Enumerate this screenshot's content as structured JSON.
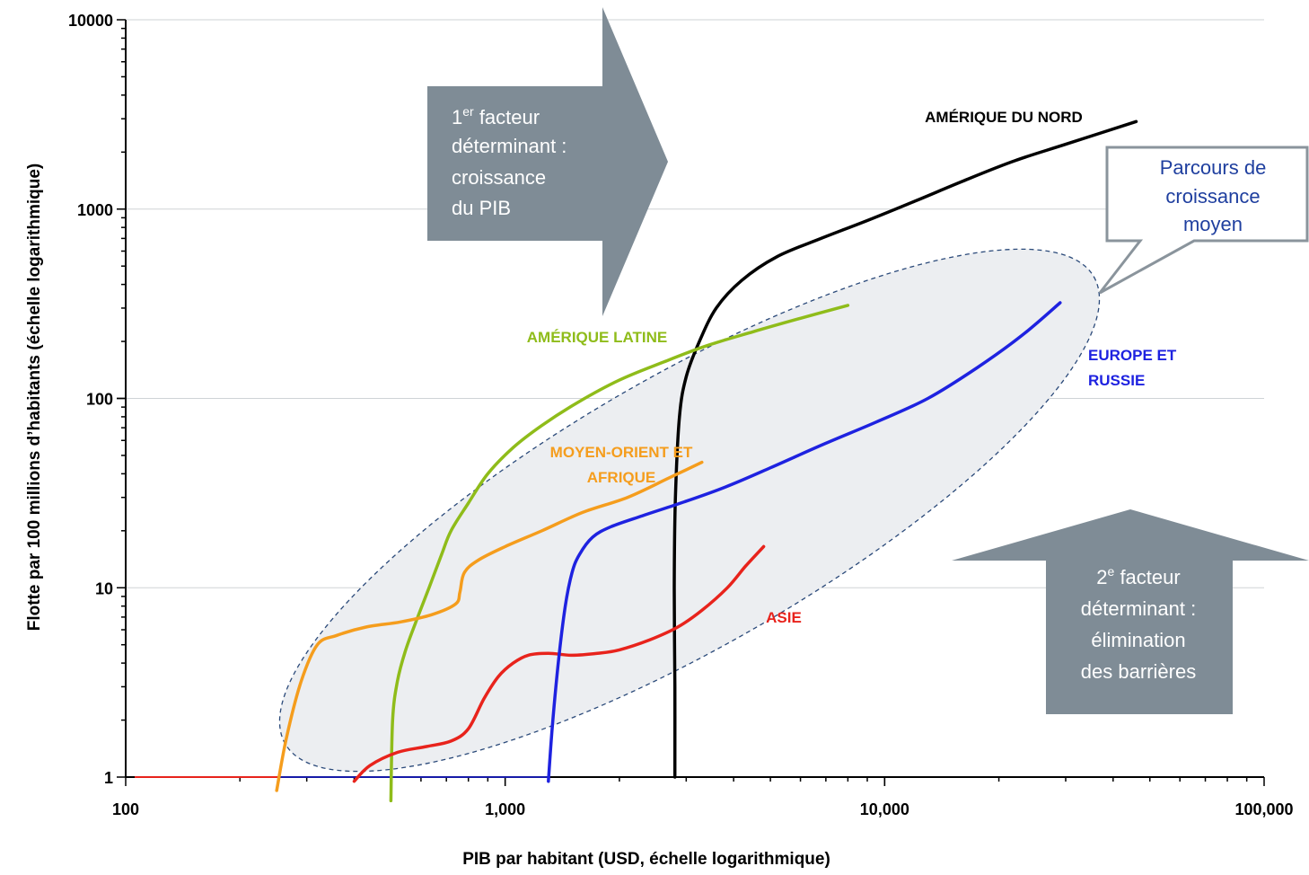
{
  "chart_data": {
    "type": "line",
    "xlabel": "PIB par habitant (USD, échelle logarithmique)",
    "ylabel": "Flotte par 100 millions d’habitants (échelle logarithmique)",
    "xscale": "log",
    "yscale": "log",
    "xlim": [
      100,
      100000
    ],
    "ylim": [
      1,
      10000
    ],
    "xticks": [
      {
        "value": 100,
        "label": "100"
      },
      {
        "value": 1000,
        "label": "1,000"
      },
      {
        "value": 10000,
        "label": "10,000"
      },
      {
        "value": 100000,
        "label": "100,000"
      }
    ],
    "yticks": [
      {
        "value": 1,
        "label": "1"
      },
      {
        "value": 10,
        "label": "10"
      },
      {
        "value": 100,
        "label": "100"
      },
      {
        "value": 1000,
        "label": "1000"
      },
      {
        "value": 10000,
        "label": "10000"
      }
    ],
    "grid": "horizontal",
    "series": [
      {
        "name": "AMÉRIQUE DU NORD",
        "color": "#000000",
        "points": [
          [
            2800,
            1
          ],
          [
            2800,
            3
          ],
          [
            2790,
            10
          ],
          [
            2810,
            30
          ],
          [
            2880,
            80
          ],
          [
            3000,
            130
          ],
          [
            3250,
            200
          ],
          [
            3600,
            300
          ],
          [
            4200,
            420
          ],
          [
            5200,
            560
          ],
          [
            6800,
            700
          ],
          [
            9000,
            870
          ],
          [
            12000,
            1100
          ],
          [
            16000,
            1400
          ],
          [
            22000,
            1800
          ],
          [
            30000,
            2200
          ],
          [
            46000,
            2900
          ]
        ]
      },
      {
        "name": "AMÉRIQUE LATINE",
        "color": "#8fbc1a",
        "points": [
          [
            500,
            0.75
          ],
          [
            505,
            2
          ],
          [
            520,
            3.2
          ],
          [
            545,
            4.6
          ],
          [
            580,
            6.5
          ],
          [
            630,
            10
          ],
          [
            680,
            15
          ],
          [
            720,
            20
          ],
          [
            800,
            28
          ],
          [
            900,
            40
          ],
          [
            1050,
            55
          ],
          [
            1250,
            72
          ],
          [
            1550,
            95
          ],
          [
            2000,
            125
          ],
          [
            2600,
            155
          ],
          [
            3400,
            190
          ],
          [
            4500,
            225
          ],
          [
            6000,
            265
          ],
          [
            8000,
            310
          ]
        ]
      },
      {
        "name": "MOYEN-ORIENT ET AFRIQUE",
        "color": "#f59d1d",
        "points": [
          [
            250,
            0.85
          ],
          [
            265,
            1.6
          ],
          [
            290,
            3.2
          ],
          [
            320,
            5
          ],
          [
            360,
            5.6
          ],
          [
            430,
            6.2
          ],
          [
            530,
            6.6
          ],
          [
            640,
            7.2
          ],
          [
            740,
            8.2
          ],
          [
            760,
            9.5
          ],
          [
            780,
            12
          ],
          [
            850,
            14
          ],
          [
            1000,
            16.5
          ],
          [
            1250,
            20
          ],
          [
            1600,
            25
          ],
          [
            2100,
            30
          ],
          [
            2700,
            38
          ],
          [
            3300,
            46
          ]
        ]
      },
      {
        "name": "ASIE",
        "color": "#e8231c",
        "points": [
          [
            400,
            0.95
          ],
          [
            440,
            1.15
          ],
          [
            520,
            1.35
          ],
          [
            620,
            1.45
          ],
          [
            720,
            1.55
          ],
          [
            800,
            1.8
          ],
          [
            880,
            2.6
          ],
          [
            960,
            3.4
          ],
          [
            1050,
            4
          ],
          [
            1150,
            4.4
          ],
          [
            1300,
            4.5
          ],
          [
            1500,
            4.4
          ],
          [
            1750,
            4.5
          ],
          [
            2000,
            4.7
          ],
          [
            2400,
            5.3
          ],
          [
            2850,
            6.2
          ],
          [
            3300,
            7.6
          ],
          [
            3850,
            10
          ],
          [
            4300,
            13
          ],
          [
            4800,
            16.5
          ]
        ]
      },
      {
        "name": "EUROPE ET RUSSIE",
        "color": "#1e22e0",
        "points": [
          [
            1300,
            0.95
          ],
          [
            1330,
            1.8
          ],
          [
            1380,
            4
          ],
          [
            1440,
            8
          ],
          [
            1500,
            12
          ],
          [
            1570,
            15
          ],
          [
            1700,
            18.5
          ],
          [
            1900,
            21
          ],
          [
            2300,
            24
          ],
          [
            2900,
            28
          ],
          [
            3800,
            34
          ],
          [
            5000,
            43
          ],
          [
            7000,
            58
          ],
          [
            9500,
            75
          ],
          [
            13000,
            100
          ],
          [
            17500,
            145
          ],
          [
            23000,
            215
          ],
          [
            29000,
            320
          ]
        ]
      }
    ],
    "series_labels": [
      {
        "text": "AMÉRIQUE DU NORD",
        "color": "#000000"
      },
      {
        "text": "AMÉRIQUE LATINE",
        "color": "#8fbc1a"
      },
      {
        "text": "MOYEN-ORIENT ET",
        "color": "#f59d1d"
      },
      {
        "text": "AFRIQUE",
        "color": "#f59d1d"
      },
      {
        "text": "ASIE",
        "color": "#e8231c"
      },
      {
        "text": "EUROPE ET",
        "color": "#1e22e0"
      },
      {
        "text": "RUSSIE",
        "color": "#1e22e0"
      }
    ],
    "annotations": {
      "gdp_arrow": {
        "lines": [
          "1er facteur",
          "déterminant :",
          "croissance",
          "du PIB"
        ],
        "superscript": "er",
        "color": "#7f8c96"
      },
      "barrier_arrow": {
        "lines": [
          "2e facteur",
          "déterminant :",
          "élimination",
          "des barrières"
        ],
        "superscript": "e",
        "color": "#7f8c96"
      },
      "callout": {
        "lines": [
          "Parcours de",
          "croissance",
          "moyen"
        ],
        "color": "#1f3f9f"
      },
      "ellipse_fill": "#eceef1",
      "ellipse_stroke": "#2b4a7a"
    }
  }
}
